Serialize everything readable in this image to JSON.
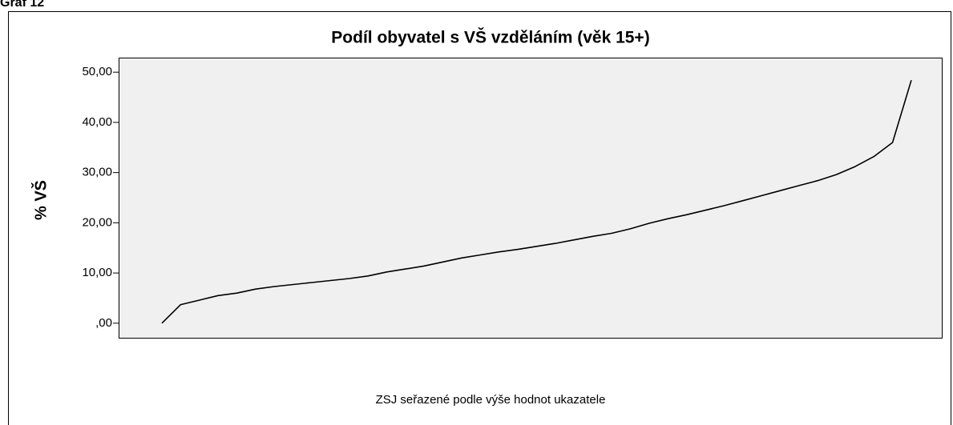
{
  "caption": "Graf 12",
  "chart_data": {
    "type": "line",
    "title": "Podíl obyvatel s VŠ vzděláním (věk 15+)",
    "ylabel": "% VŠ",
    "xlabel": "ZSJ seřazené podle výše hodnot ukazatele",
    "values": [
      0,
      3.7,
      4.6,
      5.5,
      6.0,
      6.8,
      7.3,
      7.7,
      8.1,
      8.5,
      8.9,
      9.4,
      10.2,
      10.8,
      11.4,
      12.2,
      13.0,
      13.6,
      14.2,
      14.7,
      15.3,
      15.9,
      16.6,
      17.3,
      17.9,
      18.8,
      19.9,
      20.8,
      21.6,
      22.5,
      23.4,
      24.4,
      25.4,
      26.4,
      27.4,
      28.4,
      29.6,
      31.2,
      33.2,
      36.0,
      48.4
    ],
    "color": "#000000",
    "ylim": [
      -2.9,
      52.9
    ],
    "yticks": [
      {
        "value": 0,
        "label": ",00"
      },
      {
        "value": 10,
        "label": "10,00"
      },
      {
        "value": 20,
        "label": "20,00"
      },
      {
        "value": 30,
        "label": "30,00"
      },
      {
        "value": 40,
        "label": "40,00"
      },
      {
        "value": 50,
        "label": "50,00"
      }
    ],
    "background": "#f0f0f0"
  }
}
